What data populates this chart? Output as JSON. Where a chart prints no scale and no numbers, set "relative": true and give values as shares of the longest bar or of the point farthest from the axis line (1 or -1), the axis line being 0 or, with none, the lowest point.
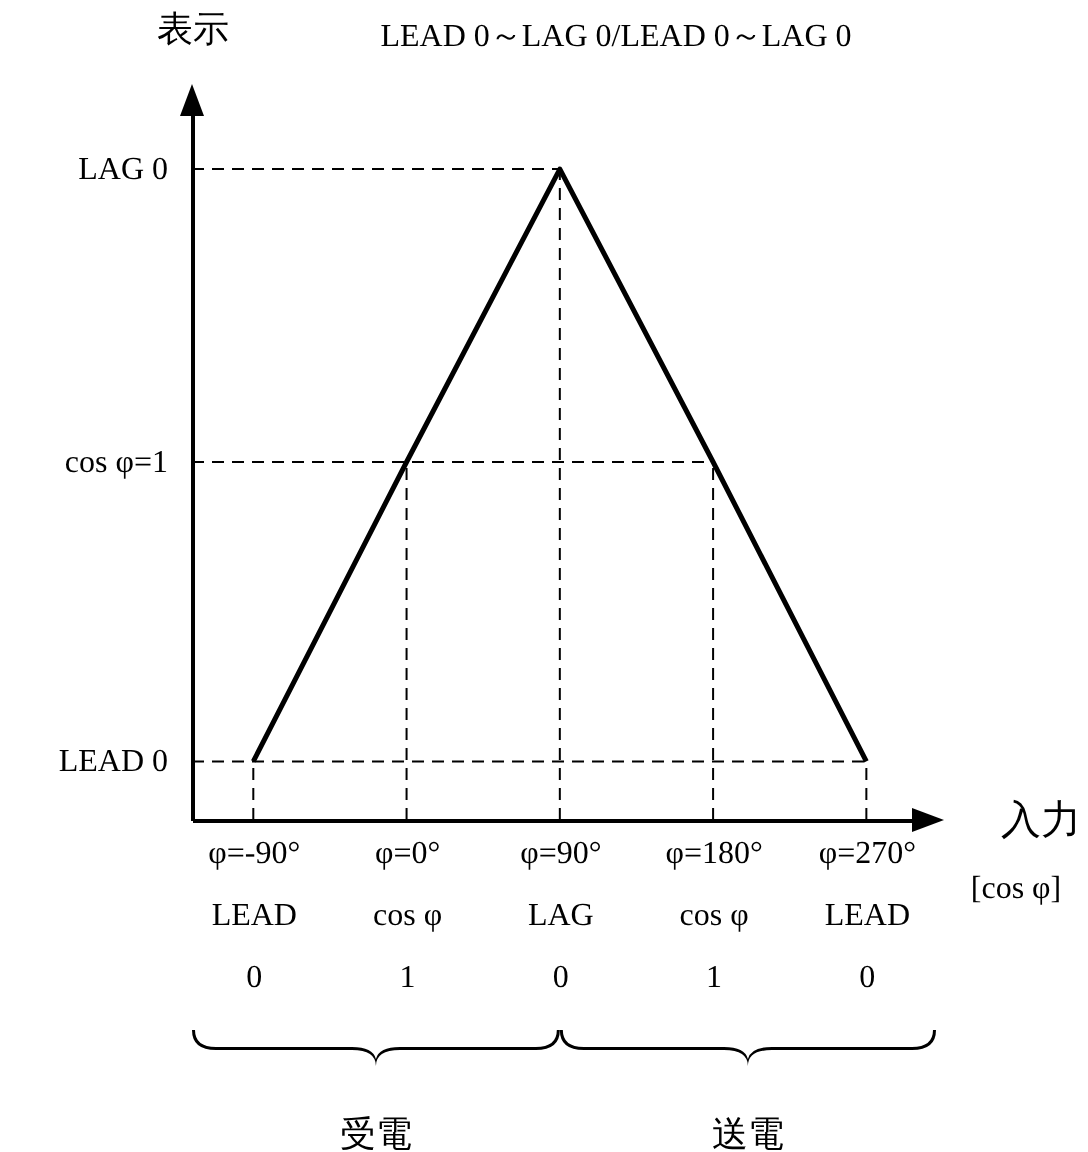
{
  "chart_data": {
    "type": "line",
    "title": "LEAD 0～LAG 0/LEAD 0～LAG 0",
    "ylabel": "表示",
    "xlabel": "入力",
    "categories": [
      "φ=-90°\nLEAD\n0",
      "φ=0°\ncos φ\n1",
      "φ=90°\nLAG\n0",
      "φ=180°\ncos φ\n1",
      "φ=270°\nLEAD\n0"
    ],
    "relative": true,
    "series": [
      {
        "color": "#000000",
        "values": [
          0.09,
          0.55,
          1,
          0.55,
          0.09
        ]
      }
    ],
    "marker": "none",
    "line_style": "solid",
    "ref_lines": [
      {
        "axis": "y",
        "value": 0.09,
        "label": "LEAD 0",
        "line_style": "dashed",
        "color": "#000000"
      },
      {
        "axis": "y",
        "value": 0.55,
        "label": "cos φ=1",
        "line_style": "dashed",
        "color": "#000000"
      },
      {
        "axis": "y",
        "value": 1,
        "label": "LAG 0",
        "line_style": "dashed",
        "color": "#000000"
      },
      {
        "axis": "x",
        "value": "φ=-90°\nLEAD\n0",
        "line_style": "dashed",
        "color": "#000000"
      },
      {
        "axis": "x",
        "value": "φ=0°\ncos φ\n1",
        "line_style": "dashed",
        "color": "#000000"
      },
      {
        "axis": "x",
        "value": "φ=90°\nLAG\n0",
        "line_style": "dashed",
        "color": "#000000"
      },
      {
        "axis": "x",
        "value": "φ=180°\ncos φ\n1",
        "line_style": "dashed",
        "color": "#000000"
      },
      {
        "axis": "x",
        "value": "φ=270°\nLEAD\n0",
        "line_style": "dashed",
        "color": "#000000"
      }
    ],
    "annotations": [
      "[cos φ]",
      "受電",
      "送電"
    ]
  }
}
